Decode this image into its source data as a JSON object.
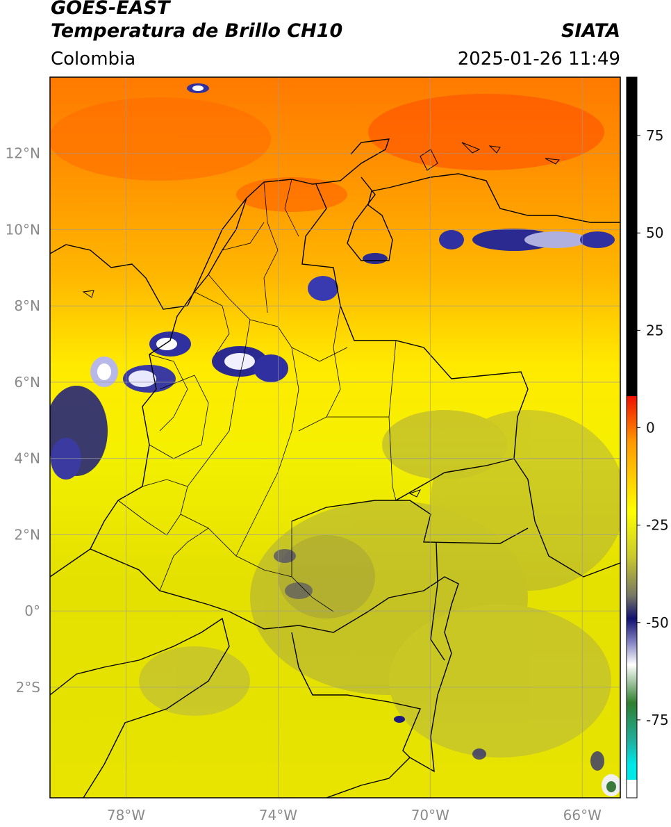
{
  "header": {
    "satellite": "GOES-EAST",
    "product": "Temperatura de Brillo CH10",
    "region": "Colombia",
    "source": "SIATA",
    "datetime": "2025-01-26 11:49"
  },
  "map": {
    "lon_range": [
      -80,
      -65
    ],
    "lat_range": [
      -4.9,
      14
    ],
    "lat_ticks": [
      {
        "value": 12,
        "label": "12°N"
      },
      {
        "value": 10,
        "label": "10°N"
      },
      {
        "value": 8,
        "label": "8°N"
      },
      {
        "value": 6,
        "label": "6°N"
      },
      {
        "value": 4,
        "label": "4°N"
      },
      {
        "value": 2,
        "label": "2°N"
      },
      {
        "value": 0,
        "label": "0°"
      },
      {
        "value": -2,
        "label": "2°S"
      }
    ],
    "lon_ticks": [
      {
        "value": -78,
        "label": "78°W"
      },
      {
        "value": -74,
        "label": "74°W"
      },
      {
        "value": -70,
        "label": "70°W"
      },
      {
        "value": -66,
        "label": "66°W"
      }
    ]
  },
  "colorbar": {
    "min": -95,
    "max": 90,
    "ticks": [
      {
        "value": 75,
        "label": "75"
      },
      {
        "value": 50,
        "label": "50"
      },
      {
        "value": 25,
        "label": "25"
      },
      {
        "value": 0,
        "label": "0"
      },
      {
        "value": -25,
        "label": "-25"
      },
      {
        "value": -50,
        "label": "-50"
      },
      {
        "value": -75,
        "label": "-75"
      }
    ],
    "colors": {
      "black": "#000000",
      "red": "#ee1100",
      "orange": "#ff9900",
      "yellow": "#ffff00",
      "olive": "#a6a640",
      "gray": "#777766",
      "navy": "#101070",
      "white": "#ffffff",
      "green": "#2f7f2f",
      "teal": "#20b0a0",
      "cyan": "#00e8e8"
    }
  }
}
